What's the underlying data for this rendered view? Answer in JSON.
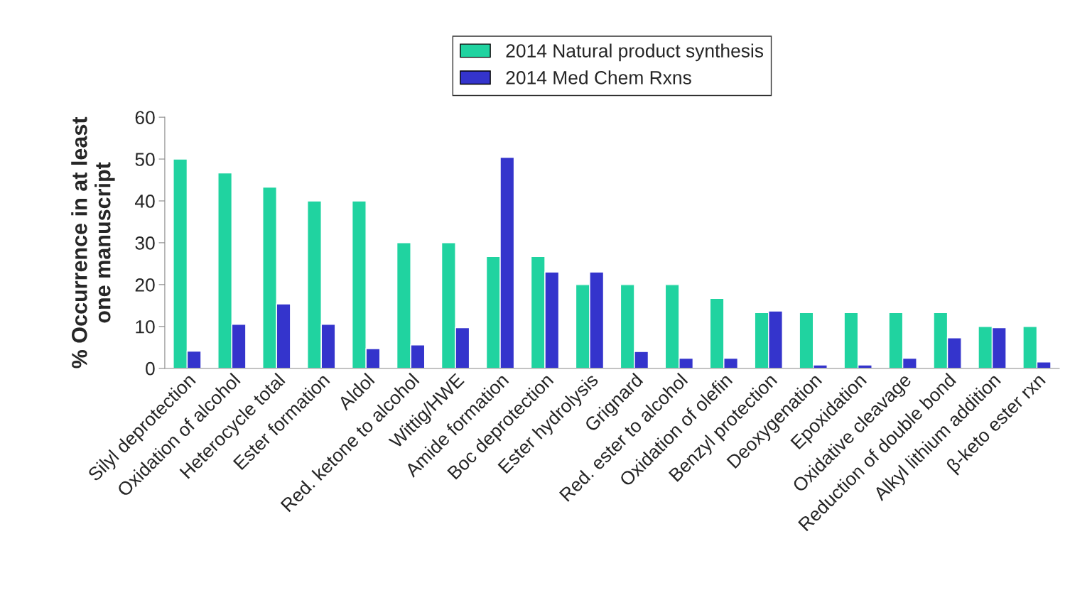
{
  "chart_data": {
    "type": "bar",
    "ylabel": "% Occurrence in at least\none manuscript",
    "categories": [
      "Silyl deprotection",
      "Oxidation of alcohol",
      "Heterocycle total",
      "Ester formation",
      "Aldol",
      "Red. ketone to alcohol",
      "Wittig/HWE",
      "Amide formation",
      "Boc deprotection",
      "Ester hydrolysis",
      "Grignard",
      "Red. ester to alcohol",
      "Oxidation of olefin",
      "Benzyl protection",
      "Deoxygenation",
      "Epoxidation",
      "Oxidative cleavage",
      "Reduction of double bond",
      "Alkyl lithium addition",
      "β-keto ester rxn"
    ],
    "series": [
      {
        "name": "2014 Natural product synthesis",
        "color": "#20d3a0",
        "values": [
          50,
          46.7,
          43.3,
          40,
          40,
          30,
          30,
          26.7,
          26.7,
          20,
          20,
          20,
          16.7,
          13.3,
          13.3,
          13.3,
          13.3,
          13.3,
          10,
          10
        ]
      },
      {
        "name": "2014 Med Chem Rxns",
        "color": "#3434cc",
        "values": [
          4.1,
          10.5,
          15.4,
          10.5,
          4.7,
          5.6,
          9.7,
          50.4,
          23,
          23,
          4,
          2.4,
          2.4,
          13.7,
          0.8,
          0.8,
          2.4,
          7.3,
          9.7,
          1.5
        ]
      }
    ],
    "ylim": [
      0,
      60
    ],
    "yticks": [
      0,
      10,
      20,
      30,
      40,
      50,
      60
    ],
    "grid": false,
    "legend": "top"
  }
}
